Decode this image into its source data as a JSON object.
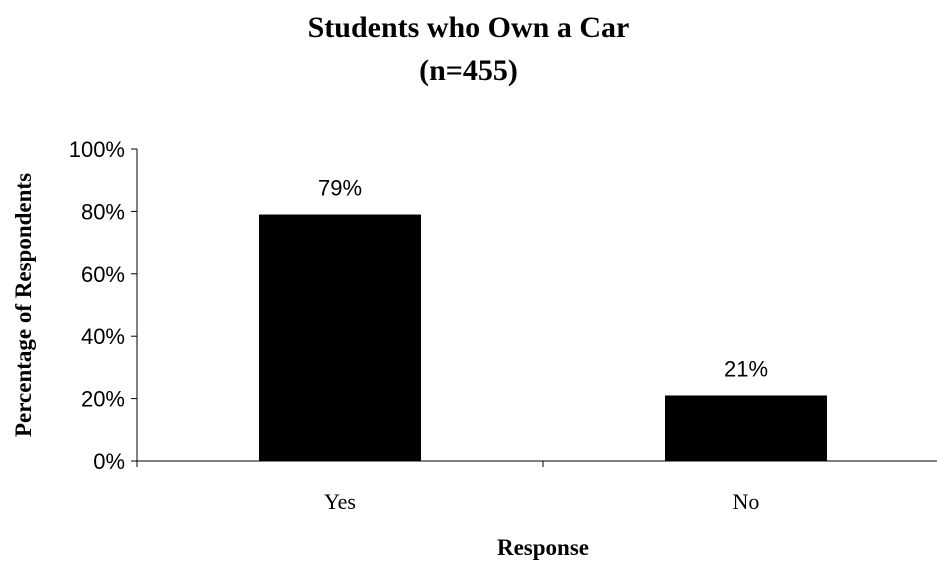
{
  "chart_data": {
    "type": "bar",
    "title": "Students who Own a Car",
    "subtitle": "(n=455)",
    "xlabel": "Response",
    "ylabel": "Percentage of Respondents",
    "categories": [
      "Yes",
      "No"
    ],
    "values": [
      79,
      21
    ],
    "data_labels": [
      "79%",
      "21%"
    ],
    "yticks": [
      0,
      20,
      40,
      60,
      80,
      100
    ],
    "ytick_labels": [
      "0%",
      "20%",
      "40%",
      "60%",
      "80%",
      "100%"
    ],
    "ylim": [
      0,
      100
    ],
    "grid": false,
    "legend": "none",
    "bar_color": "#000000"
  }
}
